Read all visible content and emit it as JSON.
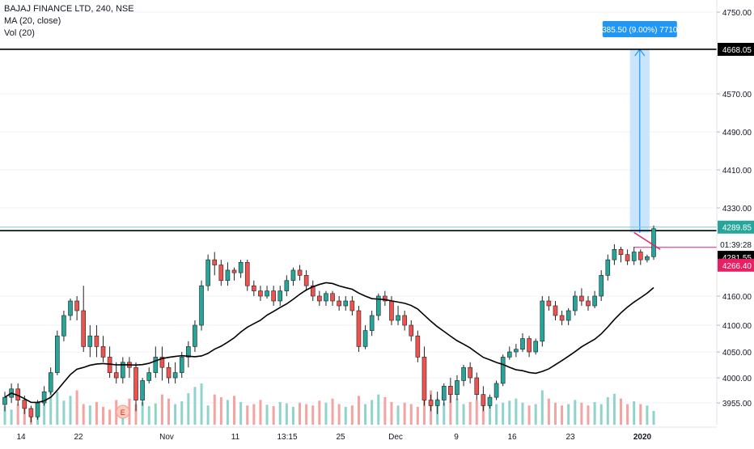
{
  "legend": {
    "symbol": "BAJAJ FINANCE LTD, 240, NSE",
    "ma": "MA (20, close)",
    "vol": "Vol (20)"
  },
  "colors": {
    "up": "#26a69a",
    "down": "#ef5350",
    "ma": "#000000",
    "measure_fill": "#bbdefb",
    "measure_line": "#2196f3",
    "current_price_tag": "#26a69a",
    "prev_close_tag": "#e91e63",
    "resistance": "#000000",
    "support_cyan": "#7ecbd2"
  },
  "chart_data": {
    "type": "candlestick",
    "y_axis": {
      "ticks": [
        "4750.00",
        "4668.05",
        "4570.00",
        "4490.00",
        "4410.00",
        "4330.00",
        "4289.85",
        "4281.55",
        "4266.40",
        "4160.00",
        "4100.00",
        "4050.00",
        "4000.00",
        "3955.00"
      ],
      "grid_ticks": [
        4750,
        4570,
        4490,
        4410,
        4330,
        4160,
        4100,
        4050,
        4000,
        3955
      ]
    },
    "x_axis": {
      "ticks": [
        "14",
        "22",
        "Nov",
        "11",
        "13:15",
        "25",
        "Dec",
        "9",
        "16",
        "23",
        "2020"
      ]
    },
    "price_labels": {
      "resistance": "4668.05",
      "current": "4289.85",
      "countdown": "01:39:28",
      "black_tag": "4281.55",
      "pink_tag": "4266.40"
    },
    "measure_label": "385.50 (9.00%) 7710",
    "earnings_marker": "E",
    "candles": [
      [
        3952,
        3965,
        3940,
        3975
      ],
      [
        3965,
        3980,
        3955,
        3990
      ],
      [
        3980,
        3960,
        3950,
        3990
      ],
      [
        3960,
        3945,
        3935,
        3968
      ],
      [
        3945,
        3930,
        3920,
        3950
      ],
      [
        3930,
        3955,
        3925,
        3960
      ],
      [
        3955,
        3975,
        3950,
        3985
      ],
      [
        3975,
        4010,
        3970,
        4020
      ],
      [
        4010,
        4080,
        4005,
        4090
      ],
      [
        4080,
        4120,
        4070,
        4130
      ],
      [
        4120,
        4150,
        4110,
        4155
      ],
      [
        4150,
        4130,
        4110,
        4160
      ],
      [
        4130,
        4060,
        4050,
        4180
      ],
      [
        4060,
        4080,
        4040,
        4100
      ],
      [
        4080,
        4060,
        4040,
        4100
      ],
      [
        4060,
        4040,
        4030,
        4080
      ],
      [
        4040,
        4010,
        4000,
        4060
      ],
      [
        4010,
        4000,
        3990,
        4030
      ],
      [
        4000,
        4030,
        3990,
        4040
      ],
      [
        4030,
        4020,
        4000,
        4040
      ],
      [
        4020,
        3960,
        3940,
        4030
      ],
      [
        3960,
        3995,
        3950,
        4000
      ],
      [
        3995,
        4010,
        3990,
        4020
      ],
      [
        4010,
        4040,
        4000,
        4060
      ],
      [
        4040,
        4020,
        3995,
        4060
      ],
      [
        4020,
        4000,
        3990,
        4030
      ],
      [
        4000,
        4010,
        3990,
        4030
      ],
      [
        4010,
        4040,
        4000,
        4050
      ],
      [
        4040,
        4060,
        4020,
        4070
      ],
      [
        4060,
        4100,
        4050,
        4110
      ],
      [
        4100,
        4180,
        4090,
        4190
      ],
      [
        4180,
        4230,
        4170,
        4240
      ],
      [
        4230,
        4220,
        4200,
        4245
      ],
      [
        4220,
        4190,
        4180,
        4230
      ],
      [
        4190,
        4210,
        4180,
        4225
      ],
      [
        4210,
        4205,
        4190,
        4215
      ],
      [
        4205,
        4225,
        4195,
        4230
      ],
      [
        4225,
        4180,
        4170,
        4230
      ],
      [
        4180,
        4170,
        4160,
        4190
      ],
      [
        4170,
        4160,
        4150,
        4180
      ],
      [
        4160,
        4170,
        4155,
        4180
      ],
      [
        4170,
        4150,
        4140,
        4180
      ],
      [
        4150,
        4170,
        4140,
        4180
      ],
      [
        4170,
        4190,
        4160,
        4200
      ],
      [
        4190,
        4210,
        4180,
        4215
      ],
      [
        4210,
        4200,
        4190,
        4220
      ],
      [
        4200,
        4180,
        4170,
        4210
      ],
      [
        4180,
        4160,
        4150,
        4190
      ],
      [
        4160,
        4150,
        4140,
        4170
      ],
      [
        4150,
        4165,
        4140,
        4170
      ],
      [
        4165,
        4150,
        4140,
        4170
      ],
      [
        4150,
        4140,
        4130,
        4160
      ],
      [
        4140,
        4150,
        4130,
        4160
      ],
      [
        4150,
        4130,
        4120,
        4160
      ],
      [
        4130,
        4060,
        4050,
        4140
      ],
      [
        4060,
        4090,
        4055,
        4100
      ],
      [
        4090,
        4120,
        4080,
        4130
      ],
      [
        4120,
        4160,
        4110,
        4165
      ],
      [
        4160,
        4150,
        4140,
        4170
      ],
      [
        4150,
        4110,
        4100,
        4160
      ],
      [
        4110,
        4120,
        4100,
        4140
      ],
      [
        4120,
        4100,
        4090,
        4130
      ],
      [
        4100,
        4080,
        4070,
        4110
      ],
      [
        4080,
        4040,
        4030,
        4090
      ],
      [
        4040,
        3960,
        3950,
        4060
      ],
      [
        3960,
        3950,
        3940,
        3970
      ],
      [
        3950,
        3960,
        3935,
        3975
      ],
      [
        3960,
        3985,
        3950,
        3990
      ],
      [
        3985,
        3970,
        3955,
        4000
      ],
      [
        3970,
        3995,
        3960,
        4005
      ],
      [
        3995,
        4020,
        3985,
        4025
      ],
      [
        4020,
        4000,
        3990,
        4030
      ],
      [
        4000,
        3970,
        3960,
        4010
      ],
      [
        3970,
        3950,
        3940,
        3985
      ],
      [
        3950,
        3965,
        3945,
        3970
      ],
      [
        3965,
        3990,
        3960,
        3995
      ],
      [
        3990,
        4040,
        3985,
        4045
      ],
      [
        4040,
        4050,
        4035,
        4060
      ],
      [
        4050,
        4055,
        4040,
        4065
      ],
      [
        4055,
        4075,
        4050,
        4085
      ],
      [
        4075,
        4050,
        4040,
        4080
      ],
      [
        4050,
        4070,
        4045,
        4075
      ],
      [
        4070,
        4150,
        4060,
        4160
      ],
      [
        4150,
        4140,
        4130,
        4160
      ],
      [
        4140,
        4120,
        4110,
        4150
      ],
      [
        4120,
        4110,
        4100,
        4130
      ],
      [
        4110,
        4130,
        4100,
        4135
      ],
      [
        4130,
        4160,
        4120,
        4170
      ],
      [
        4160,
        4150,
        4140,
        4175
      ],
      [
        4150,
        4140,
        4130,
        4160
      ],
      [
        4140,
        4160,
        4135,
        4170
      ],
      [
        4160,
        4200,
        4150,
        4210
      ],
      [
        4200,
        4230,
        4190,
        4240
      ],
      [
        4230,
        4250,
        4220,
        4260
      ],
      [
        4250,
        4240,
        4225,
        4255
      ],
      [
        4240,
        4228,
        4220,
        4250
      ],
      [
        4228,
        4245,
        4220,
        4255
      ],
      [
        4245,
        4230,
        4220,
        4250
      ],
      [
        4230,
        4236,
        4225,
        4240
      ],
      [
        4236,
        4289.85,
        4230,
        4296
      ]
    ],
    "volumes": [
      27,
      22,
      30,
      24,
      18,
      32,
      40,
      55,
      48,
      35,
      42,
      50,
      30,
      28,
      33,
      26,
      22,
      36,
      28,
      38,
      30,
      33,
      27,
      31,
      44,
      38,
      30,
      34,
      46,
      55,
      60,
      28,
      44,
      40,
      36,
      42,
      33,
      28,
      30,
      36,
      29,
      27,
      33,
      31,
      26,
      32,
      30,
      28,
      35,
      32,
      38,
      30,
      26,
      28,
      42,
      30,
      36,
      44,
      40,
      33,
      28,
      32,
      30,
      26,
      70,
      50,
      38,
      32,
      45,
      38,
      30,
      33,
      36,
      44,
      40,
      30,
      32,
      35,
      38,
      32,
      28,
      30,
      50,
      38,
      32,
      28,
      30,
      36,
      32,
      28,
      33,
      30,
      40,
      45,
      38,
      30,
      34,
      30,
      28,
      20
    ]
  }
}
